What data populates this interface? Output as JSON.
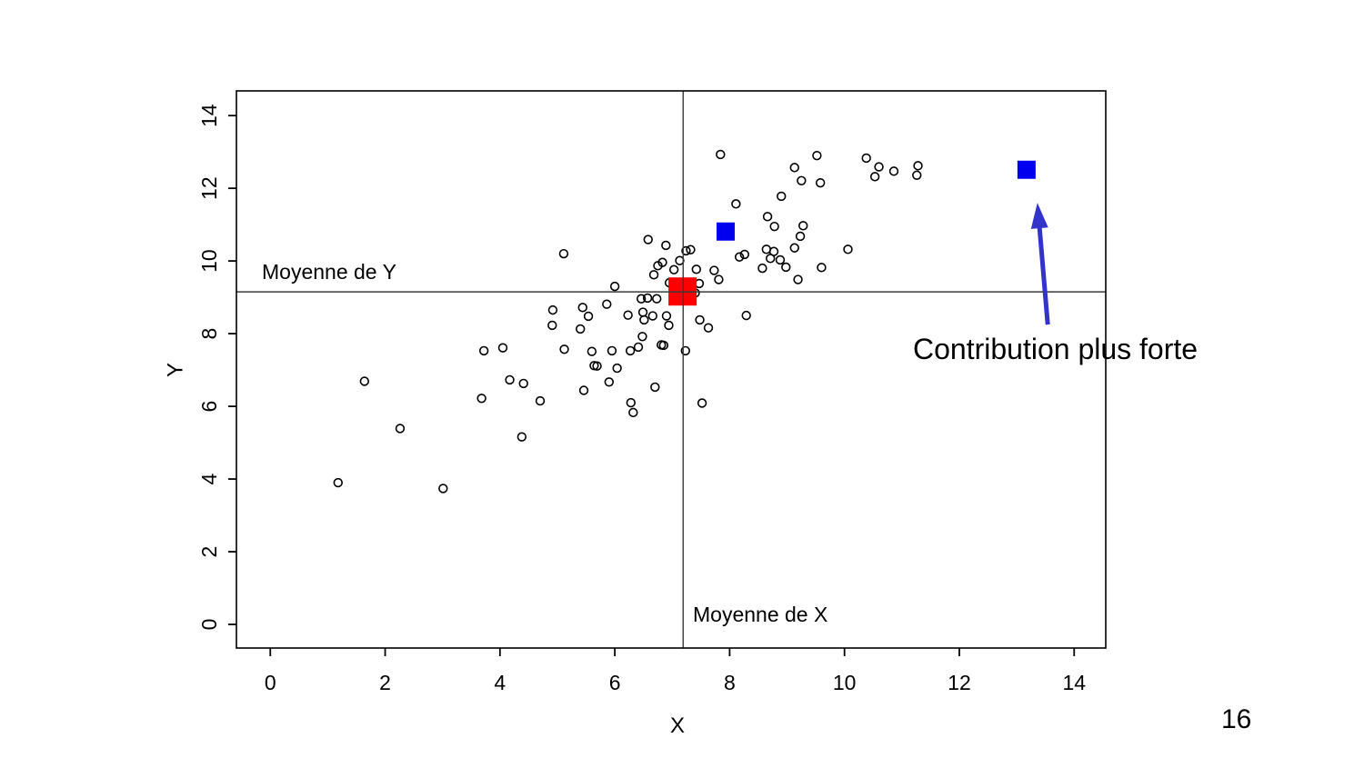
{
  "page": {
    "number": "16"
  },
  "chart_data": {
    "type": "scatter",
    "title": "",
    "xlabel": "X",
    "ylabel": "Y",
    "xlim": [
      -0.59,
      14.55
    ],
    "ylim": [
      -0.65,
      14.68
    ],
    "xticks": [
      0,
      2,
      4,
      6,
      8,
      10,
      12,
      14
    ],
    "yticks": [
      0,
      2,
      4,
      6,
      8,
      10,
      12,
      14
    ],
    "grid": false,
    "point_marker": "open-circle",
    "point_color": "#000000",
    "points": [
      [
        7.84,
        12.93
      ],
      [
        9.52,
        12.9
      ],
      [
        9.13,
        12.57
      ],
      [
        10.38,
        12.83
      ],
      [
        10.6,
        12.59
      ],
      [
        10.53,
        12.32
      ],
      [
        10.86,
        12.47
      ],
      [
        11.28,
        12.62
      ],
      [
        11.26,
        12.36
      ],
      [
        9.25,
        12.21
      ],
      [
        9.58,
        12.15
      ],
      [
        8.9,
        11.78
      ],
      [
        8.11,
        11.57
      ],
      [
        8.66,
        11.22
      ],
      [
        8.78,
        10.95
      ],
      [
        9.28,
        10.97
      ],
      [
        9.23,
        10.68
      ],
      [
        8.64,
        10.32
      ],
      [
        8.77,
        10.26
      ],
      [
        9.13,
        10.36
      ],
      [
        8.17,
        10.11
      ],
      [
        8.26,
        10.18
      ],
      [
        8.71,
        10.07
      ],
      [
        8.88,
        10.03
      ],
      [
        10.06,
        10.32
      ],
      [
        8.57,
        9.8
      ],
      [
        8.98,
        9.83
      ],
      [
        9.6,
        9.82
      ],
      [
        7.81,
        9.49
      ],
      [
        9.19,
        9.49
      ],
      [
        6.58,
        10.59
      ],
      [
        6.89,
        10.43
      ],
      [
        7.24,
        10.28
      ],
      [
        7.32,
        10.31
      ],
      [
        7.13,
        10.01
      ],
      [
        6.75,
        9.87
      ],
      [
        6.83,
        9.96
      ],
      [
        7.03,
        9.76
      ],
      [
        7.42,
        9.77
      ],
      [
        7.73,
        9.74
      ],
      [
        6.68,
        9.62
      ],
      [
        7.47,
        9.38
      ],
      [
        6.95,
        9.4
      ],
      [
        7.4,
        9.12
      ],
      [
        6.46,
        8.96
      ],
      [
        6.57,
        8.98
      ],
      [
        6.73,
        8.96
      ],
      [
        6.0,
        9.3
      ],
      [
        5.11,
        10.2
      ],
      [
        5.86,
        8.81
      ],
      [
        5.44,
        8.72
      ],
      [
        4.92,
        8.65
      ],
      [
        5.54,
        8.48
      ],
      [
        4.91,
        8.23
      ],
      [
        5.4,
        8.13
      ],
      [
        6.23,
        8.51
      ],
      [
        6.49,
        8.59
      ],
      [
        6.51,
        8.38
      ],
      [
        6.66,
        8.49
      ],
      [
        6.9,
        8.49
      ],
      [
        6.94,
        8.23
      ],
      [
        7.48,
        8.38
      ],
      [
        7.63,
        8.16
      ],
      [
        8.29,
        8.5
      ],
      [
        6.48,
        7.92
      ],
      [
        3.72,
        7.53
      ],
      [
        4.05,
        7.61
      ],
      [
        5.12,
        7.57
      ],
      [
        5.6,
        7.51
      ],
      [
        5.95,
        7.53
      ],
      [
        6.27,
        7.53
      ],
      [
        6.41,
        7.63
      ],
      [
        6.81,
        7.69
      ],
      [
        6.85,
        7.68
      ],
      [
        7.23,
        7.53
      ],
      [
        5.64,
        7.12
      ],
      [
        5.69,
        7.11
      ],
      [
        6.04,
        7.05
      ],
      [
        1.64,
        6.69
      ],
      [
        4.17,
        6.73
      ],
      [
        4.41,
        6.63
      ],
      [
        5.9,
        6.67
      ],
      [
        5.46,
        6.44
      ],
      [
        6.7,
        6.53
      ],
      [
        3.68,
        6.22
      ],
      [
        4.7,
        6.15
      ],
      [
        6.28,
        6.1
      ],
      [
        7.52,
        6.09
      ],
      [
        6.32,
        5.83
      ],
      [
        2.26,
        5.39
      ],
      [
        4.38,
        5.16
      ],
      [
        1.18,
        3.9
      ],
      [
        3.01,
        3.74
      ]
    ],
    "mean_x": {
      "value": 7.19,
      "label": "Moyenne de X"
    },
    "mean_y": {
      "value": 9.15,
      "label": "Moyenne de Y"
    },
    "mean_line_color": "#3a3a3a",
    "mean_marker": {
      "x": 7.18,
      "y": 9.16,
      "shape": "square",
      "color": "#ff0000",
      "size": 31
    },
    "highlight_markers": [
      {
        "x": 7.93,
        "y": 10.81
      },
      {
        "x": 13.17,
        "y": 12.51
      }
    ],
    "highlight_shape": "square",
    "highlight_color": "#0000ee",
    "highlight_size": 20,
    "annotation": {
      "text": "Contribution plus forte",
      "color": "#000000"
    },
    "arrow": {
      "from": [
        13.54,
        8.25
      ],
      "to": [
        13.36,
        11.6
      ],
      "color": "#3333cc"
    }
  }
}
